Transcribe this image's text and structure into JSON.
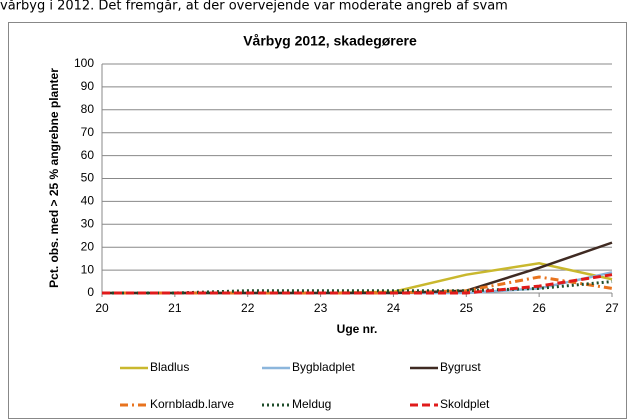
{
  "caption": "vårbyg i 2012. Det fremgår, at der overvejende var moderate angreb af svam",
  "chart_data": {
    "type": "line",
    "title": "Vårbyg 2012, skadegørere",
    "x_label": "Uge nr.",
    "y_label": "Pct. obs. med > 25 % angrebne planter",
    "x": [
      20,
      21,
      22,
      23,
      24,
      25,
      26,
      27
    ],
    "xlim": [
      20,
      27
    ],
    "xticks": [
      20,
      21,
      22,
      23,
      24,
      25,
      26,
      27
    ],
    "ylim": [
      0,
      100
    ],
    "yticks": [
      0,
      10,
      20,
      30,
      40,
      50,
      60,
      70,
      80,
      90,
      100
    ],
    "grid": true,
    "series": [
      {
        "name": "Bladlus",
        "color": "#c9b82e",
        "dash": "solid",
        "values": [
          0,
          0,
          0,
          0,
          0.5,
          8,
          13,
          6
        ]
      },
      {
        "name": "Bygbladplet",
        "color": "#8cb6dc",
        "dash": "solid",
        "values": [
          0,
          0,
          0,
          0,
          0,
          0,
          2,
          9
        ]
      },
      {
        "name": "Bygrust",
        "color": "#3f2a22",
        "dash": "solid",
        "values": [
          0,
          0,
          0,
          0,
          0,
          1,
          11,
          22
        ]
      },
      {
        "name": "Kornbladb.larve",
        "color": "#e8731e",
        "dash": "dashdot",
        "values": [
          0,
          0,
          0,
          0,
          0,
          1,
          7,
          2
        ]
      },
      {
        "name": "Meldug",
        "color": "#1f4d2a",
        "dash": "dotted",
        "values": [
          0,
          0,
          1,
          1,
          1,
          1,
          2,
          5
        ]
      },
      {
        "name": "Skoldplet",
        "color": "#e01b1b",
        "dash": "dashed",
        "values": [
          0,
          0,
          0,
          0,
          0,
          0,
          3,
          8
        ]
      }
    ]
  }
}
